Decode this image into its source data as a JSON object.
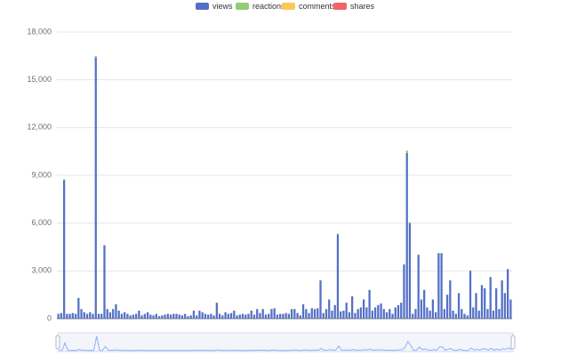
{
  "chart_data": {
    "type": "bar",
    "stacked": true,
    "categories": [
      null,
      null,
      null,
      null,
      null,
      null,
      null,
      null,
      null,
      null,
      null,
      null,
      null,
      null,
      null,
      null,
      null,
      null,
      null,
      null,
      null,
      null,
      null,
      null,
      null,
      null,
      null,
      null,
      null,
      null,
      null,
      null,
      null,
      null,
      null,
      null,
      null,
      null,
      null,
      null,
      null,
      null,
      null,
      null,
      null,
      null,
      null,
      null,
      null,
      null,
      null,
      null,
      null,
      null,
      null,
      null,
      null,
      null,
      null,
      null,
      null,
      null,
      null,
      null,
      null,
      null,
      null,
      null,
      null,
      null,
      null,
      null,
      null,
      null,
      null,
      null,
      null,
      null,
      null,
      null,
      null,
      null,
      null,
      null,
      null,
      null,
      null,
      null,
      null,
      null,
      null,
      null,
      null,
      null,
      null,
      null,
      null,
      null,
      null,
      null,
      null,
      null,
      null,
      null,
      null,
      null,
      null,
      null,
      null,
      null,
      null,
      null,
      null,
      null,
      null,
      null,
      null,
      null,
      null,
      null,
      null,
      null,
      null,
      null,
      null,
      null,
      null,
      null,
      null,
      null,
      null,
      null,
      null,
      null,
      null,
      null,
      null,
      null,
      null,
      null,
      null,
      null,
      null,
      null,
      null,
      null,
      null,
      null,
      null,
      null,
      null,
      null,
      null,
      null,
      null,
      null,
      null,
      null
    ],
    "series": [
      {
        "name": "views",
        "color": "#5470c6",
        "values": [
          300,
          350,
          8700,
          300,
          300,
          350,
          300,
          1300,
          600,
          400,
          300,
          400,
          300,
          16400,
          300,
          300,
          4600,
          600,
          400,
          600,
          900,
          500,
          300,
          400,
          300,
          200,
          250,
          300,
          500,
          200,
          300,
          400,
          250,
          200,
          300,
          150,
          200,
          250,
          300,
          250,
          300,
          300,
          250,
          200,
          300,
          150,
          200,
          500,
          200,
          500,
          400,
          300,
          250,
          300,
          200,
          1000,
          300,
          200,
          400,
          300,
          350,
          500,
          200,
          250,
          300,
          250,
          300,
          500,
          250,
          600,
          350,
          600,
          250,
          300,
          600,
          650,
          250,
          300,
          300,
          350,
          300,
          600,
          600,
          350,
          200,
          900,
          600,
          350,
          650,
          600,
          650,
          2400,
          350,
          600,
          1200,
          500,
          850,
          5300,
          450,
          500,
          1000,
          400,
          1400,
          350,
          600,
          700,
          1200,
          700,
          1800,
          500,
          700,
          850,
          950,
          600,
          400,
          600,
          300,
          700,
          850,
          1000,
          3400,
          10400,
          6000,
          300,
          600,
          4000,
          1200,
          1800,
          700,
          500,
          1200,
          400,
          4100,
          4100,
          600,
          1500,
          2400,
          500,
          300,
          1600,
          600,
          300,
          200,
          3000,
          700,
          1600,
          500,
          2100,
          1900,
          600,
          2600,
          500,
          1900,
          600,
          2400,
          1600,
          3100,
          1200
        ]
      },
      {
        "name": "reactions",
        "color": "#91cc75",
        "values": [
          5,
          5,
          60,
          5,
          5,
          5,
          5,
          10,
          5,
          5,
          5,
          5,
          5,
          100,
          5,
          5,
          30,
          5,
          5,
          5,
          5,
          5,
          5,
          5,
          5,
          5,
          5,
          5,
          5,
          5,
          5,
          5,
          5,
          5,
          5,
          5,
          5,
          5,
          5,
          5,
          5,
          5,
          5,
          5,
          5,
          5,
          5,
          5,
          5,
          5,
          5,
          5,
          5,
          5,
          5,
          10,
          5,
          5,
          5,
          5,
          5,
          5,
          5,
          5,
          5,
          5,
          5,
          5,
          5,
          5,
          5,
          5,
          5,
          5,
          5,
          5,
          5,
          5,
          5,
          5,
          5,
          5,
          5,
          5,
          5,
          5,
          5,
          5,
          5,
          5,
          5,
          20,
          5,
          5,
          10,
          5,
          5,
          40,
          5,
          5,
          10,
          5,
          10,
          5,
          5,
          5,
          10,
          5,
          15,
          5,
          5,
          5,
          5,
          5,
          5,
          5,
          5,
          5,
          5,
          10,
          25,
          150,
          50,
          5,
          5,
          30,
          10,
          15,
          5,
          5,
          10,
          5,
          30,
          30,
          5,
          10,
          20,
          5,
          5,
          10,
          5,
          5,
          5,
          25,
          5,
          10,
          5,
          15,
          15,
          5,
          20,
          5,
          15,
          5,
          20,
          10,
          25,
          10
        ]
      },
      {
        "name": "comments",
        "color": "#fac858",
        "values": [
          0,
          0,
          0,
          0,
          0,
          0,
          0,
          0,
          0,
          0,
          0,
          0,
          0,
          0,
          0,
          0,
          0,
          0,
          0,
          0,
          0,
          0,
          0,
          0,
          0,
          0,
          0,
          0,
          0,
          0,
          0,
          0,
          0,
          0,
          0,
          0,
          0,
          0,
          0,
          0,
          0,
          0,
          0,
          0,
          0,
          0,
          0,
          0,
          0,
          0,
          0,
          0,
          0,
          0,
          0,
          0,
          0,
          0,
          0,
          0,
          0,
          0,
          0,
          0,
          0,
          0,
          0,
          0,
          0,
          0,
          0,
          0,
          0,
          0,
          0,
          0,
          0,
          0,
          0,
          0,
          0,
          0,
          0,
          0,
          0,
          0,
          0,
          0,
          0,
          0,
          0,
          0,
          0,
          0,
          0,
          0,
          0,
          0,
          0,
          0,
          0,
          0,
          0,
          0,
          0,
          0,
          0,
          0,
          0,
          0,
          0,
          0,
          0,
          0,
          0,
          0,
          0,
          0,
          0,
          0,
          0,
          0,
          0,
          0,
          0,
          0,
          0,
          0,
          0,
          0,
          0,
          0,
          0,
          0,
          0,
          0,
          0,
          0,
          0,
          0,
          0,
          0,
          0,
          0,
          0,
          0,
          0,
          0,
          0,
          0,
          0,
          0,
          0,
          0,
          0,
          0,
          0,
          0
        ]
      },
      {
        "name": "shares",
        "color": "#ee6666",
        "values": [
          0,
          0,
          0,
          0,
          0,
          0,
          0,
          0,
          0,
          0,
          0,
          0,
          0,
          0,
          0,
          0,
          0,
          0,
          0,
          0,
          0,
          0,
          0,
          0,
          0,
          0,
          0,
          0,
          0,
          0,
          0,
          0,
          0,
          0,
          0,
          0,
          0,
          0,
          0,
          0,
          0,
          0,
          0,
          0,
          0,
          0,
          0,
          0,
          0,
          0,
          0,
          0,
          0,
          0,
          0,
          0,
          0,
          0,
          0,
          0,
          0,
          0,
          0,
          0,
          0,
          0,
          0,
          0,
          0,
          0,
          0,
          0,
          0,
          0,
          0,
          0,
          0,
          0,
          0,
          0,
          0,
          0,
          0,
          0,
          0,
          0,
          0,
          0,
          0,
          0,
          0,
          0,
          0,
          0,
          0,
          0,
          0,
          0,
          0,
          0,
          0,
          0,
          0,
          0,
          0,
          0,
          0,
          0,
          0,
          0,
          0,
          0,
          0,
          0,
          0,
          0,
          0,
          0,
          0,
          0,
          0,
          0,
          0,
          0,
          0,
          0,
          0,
          0,
          0,
          0,
          0,
          0,
          0,
          0,
          0,
          0,
          0,
          0,
          0,
          0,
          0,
          0,
          0,
          0,
          0,
          0,
          0,
          0,
          0,
          0,
          0,
          0,
          0,
          0,
          0,
          0,
          0,
          0
        ]
      }
    ],
    "ylim": [
      0,
      18000
    ],
    "yticks": [
      0,
      {
        "value": 3000,
        "label": "3,000"
      },
      {
        "value": 6000,
        "label": "6,000"
      },
      {
        "value": 9000,
        "label": "9,000"
      },
      {
        "value": 12000,
        "label": "12,000"
      },
      {
        "value": 15000,
        "label": "15,000"
      },
      {
        "value": 18000,
        "label": "18,000"
      }
    ],
    "grid": true,
    "legend": "top"
  }
}
